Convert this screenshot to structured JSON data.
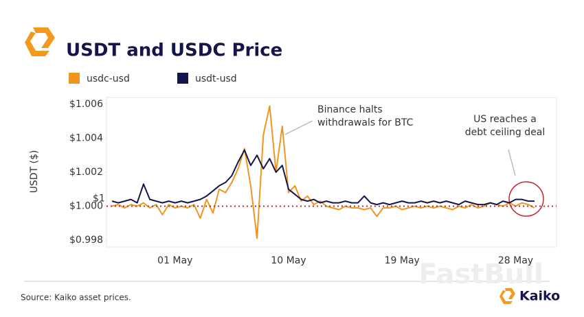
{
  "chart_data": {
    "type": "line",
    "title": "USDT and USDC Price",
    "ylabel": "USDT ($)",
    "source": "Source: Kaiko asset prices.",
    "brand": "Kaiko",
    "watermark": "FastBull",
    "categories": [
      null,
      null,
      null,
      null,
      null,
      null,
      null,
      null,
      null,
      null,
      "01 May",
      null,
      null,
      null,
      null,
      null,
      null,
      null,
      null,
      null,
      null,
      null,
      null,
      null,
      null,
      null,
      null,
      null,
      "10 May",
      null,
      null,
      null,
      null,
      null,
      null,
      null,
      null,
      null,
      null,
      null,
      null,
      null,
      null,
      null,
      null,
      null,
      "19 May",
      null,
      null,
      null,
      null,
      null,
      null,
      null,
      null,
      null,
      null,
      null,
      null,
      null,
      null,
      null,
      null,
      null,
      "28 May",
      null,
      null,
      null
    ],
    "series": [
      {
        "name": "usdc-usd",
        "color": "#f0961e",
        "values": [
          1.0,
          1.0001,
          0.9999,
          1.0001,
          1.0,
          1.0002,
          0.9999,
          1.0001,
          0.9995,
          1.0001,
          0.9999,
          1.0,
          0.9999,
          1.0001,
          0.9993,
          1.0004,
          0.9996,
          1.001,
          1.0008,
          1.0014,
          1.0022,
          1.0034,
          1.0012,
          0.9981,
          1.0042,
          1.0059,
          1.002,
          1.0047,
          1.0008,
          1.0012,
          1.0003,
          1.0006,
          1.0001,
          1.0003,
          1.0,
          0.9999,
          0.9998,
          1.0,
          0.9999,
          0.9999,
          0.9998,
          0.9999,
          0.9994,
          0.9999,
          0.9999,
          1.0,
          0.9998,
          0.9999,
          1.0,
          0.9999,
          1.0,
          0.9999,
          1.0,
          0.9999,
          0.9998,
          1.0,
          0.9999,
          1.0001,
          0.9999,
          1.0,
          1.0002,
          1.0001,
          1.0,
          1.0002,
          1.0,
          1.0002,
          1.0001,
          0.9999
        ]
      },
      {
        "name": "usdt-usd",
        "color": "#14154a",
        "values": [
          1.0003,
          1.0002,
          1.0003,
          1.0004,
          1.0002,
          1.0013,
          1.0004,
          1.0003,
          1.0002,
          1.0003,
          1.0002,
          1.0003,
          1.0002,
          1.0003,
          1.0004,
          1.0006,
          1.0009,
          1.0012,
          1.0014,
          1.0018,
          1.0026,
          1.0033,
          1.0024,
          1.003,
          1.0022,
          1.0028,
          1.002,
          1.0024,
          1.001,
          1.0007,
          1.0004,
          1.0003,
          1.0004,
          1.0002,
          1.0003,
          1.0002,
          1.0002,
          1.0003,
          1.0002,
          1.0002,
          1.0006,
          1.0002,
          1.0001,
          1.0002,
          1.0001,
          1.0002,
          1.0003,
          1.0002,
          1.0002,
          1.0003,
          1.0002,
          1.0003,
          1.0002,
          1.0003,
          1.0002,
          1.0001,
          1.0003,
          1.0002,
          1.0001,
          1.0001,
          1.0002,
          1.0001,
          1.0003,
          1.0002,
          1.0004,
          1.0004,
          1.0003,
          1.0003
        ]
      }
    ],
    "ylim": [
      0.9976,
      1.0064
    ],
    "yticks": [
      {
        "value": 0.998,
        "label": "$0.998"
      },
      {
        "value": 1,
        "label": "$1.000"
      },
      {
        "value": 1.002,
        "label": "$1.002"
      },
      {
        "value": 1.004,
        "label": "$1.004"
      },
      {
        "value": 1.006,
        "label": "$1.006"
      }
    ],
    "ref_line": {
      "value": 1,
      "label": "$1",
      "color": "#c0262d"
    },
    "annotations": [
      {
        "lines": [
          "Binance halts",
          "withdrawals for BTC"
        ]
      },
      {
        "lines": [
          "US reaches a",
          "debt ceiling deal"
        ]
      }
    ]
  }
}
